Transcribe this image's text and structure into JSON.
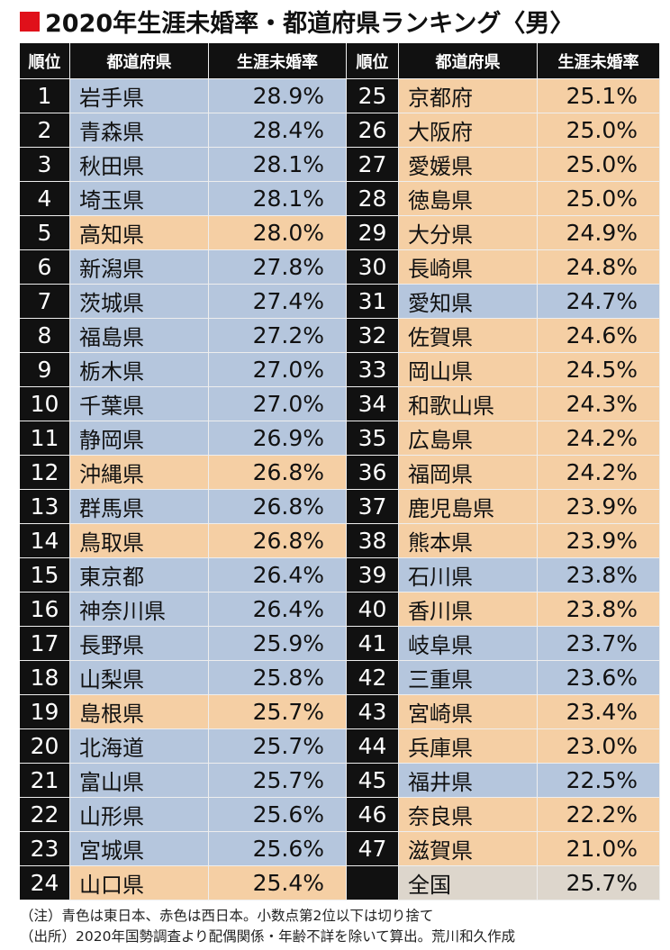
{
  "title": "2020年生涯未婚率・都道府県ランキング〈男〉",
  "headers": [
    "順位",
    "都道府県",
    "生涯未婚率"
  ],
  "rows": [
    {
      "rank": 1,
      "name": "岩手県",
      "rate": "28.9%",
      "color": "#b5c6dd"
    },
    {
      "rank": 2,
      "name": "青森県",
      "rate": "28.4%",
      "color": "#b5c6dd"
    },
    {
      "rank": 3,
      "name": "秋田県",
      "rate": "28.1%",
      "color": "#b5c6dd"
    },
    {
      "rank": 4,
      "name": "埼玉県",
      "rate": "28.1%",
      "color": "#b5c6dd"
    },
    {
      "rank": 5,
      "name": "高知県",
      "rate": "28.0%",
      "color": "#f5cfa4"
    },
    {
      "rank": 6,
      "name": "新潟県",
      "rate": "27.8%",
      "color": "#b5c6dd"
    },
    {
      "rank": 7,
      "name": "茨城県",
      "rate": "27.4%",
      "color": "#b5c6dd"
    },
    {
      "rank": 8,
      "name": "福島県",
      "rate": "27.2%",
      "color": "#b5c6dd"
    },
    {
      "rank": 9,
      "name": "栃木県",
      "rate": "27.0%",
      "color": "#b5c6dd"
    },
    {
      "rank": 10,
      "name": "千葉県",
      "rate": "27.0%",
      "color": "#b5c6dd"
    },
    {
      "rank": 11,
      "name": "静岡県",
      "rate": "26.9%",
      "color": "#b5c6dd"
    },
    {
      "rank": 12,
      "name": "沖縄県",
      "rate": "26.8%",
      "color": "#f5cfa4"
    },
    {
      "rank": 13,
      "name": "群馬県",
      "rate": "26.8%",
      "color": "#b5c6dd"
    },
    {
      "rank": 14,
      "name": "鳥取県",
      "rate": "26.8%",
      "color": "#f5cfa4"
    },
    {
      "rank": 15,
      "name": "東京都",
      "rate": "26.4%",
      "color": "#b5c6dd"
    },
    {
      "rank": 16,
      "name": "神奈川県",
      "rate": "26.4%",
      "color": "#b5c6dd"
    },
    {
      "rank": 17,
      "name": "長野県",
      "rate": "25.9%",
      "color": "#b5c6dd"
    },
    {
      "rank": 18,
      "name": "山梨県",
      "rate": "25.8%",
      "color": "#b5c6dd"
    },
    {
      "rank": 19,
      "name": "島根県",
      "rate": "25.7%",
      "color": "#f5cfa4"
    },
    {
      "rank": 20,
      "name": "北海道",
      "rate": "25.7%",
      "color": "#b5c6dd"
    },
    {
      "rank": 21,
      "name": "富山県",
      "rate": "25.7%",
      "color": "#b5c6dd"
    },
    {
      "rank": 22,
      "name": "山形県",
      "rate": "25.6%",
      "color": "#b5c6dd"
    },
    {
      "rank": 23,
      "name": "宮城県",
      "rate": "25.6%",
      "color": "#b5c6dd"
    },
    {
      "rank": 24,
      "name": "山口県",
      "rate": "25.4%",
      "color": "#f5cfa4"
    },
    {
      "rank": 25,
      "name": "京都府",
      "rate": "25.1%",
      "color": "#f5cfa4"
    },
    {
      "rank": 26,
      "name": "大阪府",
      "rate": "25.0%",
      "color": "#f5cfa4"
    },
    {
      "rank": 27,
      "name": "愛媛県",
      "rate": "25.0%",
      "color": "#f5cfa4"
    },
    {
      "rank": 28,
      "name": "徳島県",
      "rate": "25.0%",
      "color": "#f5cfa4"
    },
    {
      "rank": 29,
      "name": "大分県",
      "rate": "24.9%",
      "color": "#f5cfa4"
    },
    {
      "rank": 30,
      "name": "長崎県",
      "rate": "24.8%",
      "color": "#f5cfa4"
    },
    {
      "rank": 31,
      "name": "愛知県",
      "rate": "24.7%",
      "color": "#b5c6dd"
    },
    {
      "rank": 32,
      "name": "佐賀県",
      "rate": "24.6%",
      "color": "#f5cfa4"
    },
    {
      "rank": 33,
      "name": "岡山県",
      "rate": "24.5%",
      "color": "#f5cfa4"
    },
    {
      "rank": 34,
      "name": "和歌山県",
      "rate": "24.3%",
      "color": "#f5cfa4"
    },
    {
      "rank": 35,
      "name": "広島県",
      "rate": "24.2%",
      "color": "#f5cfa4"
    },
    {
      "rank": 36,
      "name": "福岡県",
      "rate": "24.2%",
      "color": "#f5cfa4"
    },
    {
      "rank": 37,
      "name": "鹿児島県",
      "rate": "23.9%",
      "color": "#f5cfa4"
    },
    {
      "rank": 38,
      "name": "熊本県",
      "rate": "23.9%",
      "color": "#f5cfa4"
    },
    {
      "rank": 39,
      "name": "石川県",
      "rate": "23.8%",
      "color": "#b5c6dd"
    },
    {
      "rank": 40,
      "name": "香川県",
      "rate": "23.8%",
      "color": "#f5cfa4"
    },
    {
      "rank": 41,
      "name": "岐阜県",
      "rate": "23.7%",
      "color": "#b5c6dd"
    },
    {
      "rank": 42,
      "name": "三重県",
      "rate": "23.6%",
      "color": "#b5c6dd"
    },
    {
      "rank": 43,
      "name": "宮崎県",
      "rate": "23.4%",
      "color": "#f5cfa4"
    },
    {
      "rank": 44,
      "name": "兵庫県",
      "rate": "23.0%",
      "color": "#f5cfa4"
    },
    {
      "rank": 45,
      "name": "福井県",
      "rate": "22.5%",
      "color": "#b5c6dd"
    },
    {
      "rank": 46,
      "name": "奈良県",
      "rate": "22.2%",
      "color": "#f5cfa4"
    },
    {
      "rank": 47,
      "name": "滋賀県",
      "rate": "21.0%",
      "color": "#f5cfa4"
    }
  ],
  "national": {
    "name": "全国",
    "rate": "25.7%",
    "color": "#ddd6cc"
  },
  "notes": [
    "（注）青色は東日本、赤色は西日本。小数点第2位以下は切り捨て",
    "（出所）2020年国勢調査より配偶関係・年齢不詳を除いて算出。荒川和久作成"
  ]
}
